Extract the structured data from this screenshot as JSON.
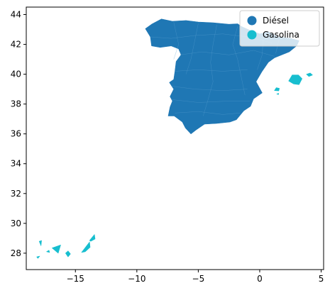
{
  "chart_data": {
    "type": "choropleth",
    "title": "",
    "xlabel": "",
    "ylabel": "",
    "xlim": [
      -19,
      5.2
    ],
    "ylim": [
      26.9,
      44.5
    ],
    "xticks": [
      -15,
      -10,
      -5,
      0,
      5
    ],
    "xtick_labels": [
      "−15",
      "−10",
      "−5",
      "0",
      "5"
    ],
    "yticks": [
      28,
      30,
      32,
      34,
      36,
      38,
      40,
      42,
      44
    ],
    "ytick_labels": [
      "28",
      "30",
      "32",
      "34",
      "36",
      "38",
      "40",
      "42",
      "44"
    ],
    "grid": false,
    "legend_position": "top-right",
    "series": [
      {
        "name": "Diésel",
        "color": "#1f77b4"
      },
      {
        "name": "Gasolina",
        "color": "#17becf"
      }
    ],
    "regions": [
      {
        "region": "Peninsula",
        "category": "Diésel",
        "outline": [
          [
            -9.3,
            43.05
          ],
          [
            -8.8,
            43.35
          ],
          [
            -8.0,
            43.7
          ],
          [
            -7.1,
            43.55
          ],
          [
            -6.0,
            43.6
          ],
          [
            -5.0,
            43.5
          ],
          [
            -3.8,
            43.45
          ],
          [
            -3.2,
            43.4
          ],
          [
            -2.5,
            43.35
          ],
          [
            -1.8,
            43.38
          ],
          [
            -1.5,
            43.2
          ],
          [
            -0.8,
            42.95
          ],
          [
            0.0,
            42.7
          ],
          [
            0.7,
            42.85
          ],
          [
            1.5,
            42.5
          ],
          [
            2.5,
            42.4
          ],
          [
            3.2,
            42.25
          ],
          [
            3.0,
            41.9
          ],
          [
            2.4,
            41.5
          ],
          [
            1.2,
            41.1
          ],
          [
            0.7,
            40.8
          ],
          [
            0.2,
            40.2
          ],
          [
            -0.3,
            39.5
          ],
          [
            0.2,
            38.75
          ],
          [
            -0.5,
            38.35
          ],
          [
            -0.75,
            37.85
          ],
          [
            -1.3,
            37.55
          ],
          [
            -1.9,
            36.95
          ],
          [
            -2.4,
            36.8
          ],
          [
            -3.5,
            36.7
          ],
          [
            -4.5,
            36.65
          ],
          [
            -5.2,
            36.25
          ],
          [
            -5.6,
            36.0
          ],
          [
            -6.05,
            36.4
          ],
          [
            -6.3,
            36.8
          ],
          [
            -6.95,
            37.2
          ],
          [
            -7.45,
            37.2
          ],
          [
            -7.3,
            37.8
          ],
          [
            -7.1,
            38.2
          ],
          [
            -7.3,
            38.5
          ],
          [
            -7.0,
            39.0
          ],
          [
            -7.35,
            39.45
          ],
          [
            -7.0,
            39.65
          ],
          [
            -6.9,
            40.2
          ],
          [
            -6.8,
            40.85
          ],
          [
            -6.4,
            41.3
          ],
          [
            -6.6,
            41.7
          ],
          [
            -7.2,
            41.9
          ],
          [
            -8.1,
            41.8
          ],
          [
            -8.8,
            41.9
          ],
          [
            -8.9,
            42.5
          ],
          [
            -9.3,
            43.05
          ]
        ]
      },
      {
        "region": "Mallorca",
        "category": "Gasolina",
        "outline": [
          [
            2.35,
            39.55
          ],
          [
            2.65,
            39.95
          ],
          [
            3.15,
            39.95
          ],
          [
            3.45,
            39.7
          ],
          [
            3.2,
            39.3
          ],
          [
            2.75,
            39.35
          ],
          [
            2.35,
            39.55
          ]
        ]
      },
      {
        "region": "Menorca",
        "category": "Gasolina",
        "outline": [
          [
            3.8,
            40.0
          ],
          [
            4.1,
            40.08
          ],
          [
            4.3,
            39.95
          ],
          [
            4.0,
            39.85
          ],
          [
            3.8,
            40.0
          ]
        ]
      },
      {
        "region": "Ibiza",
        "category": "Gasolina",
        "outline": [
          [
            1.2,
            38.9
          ],
          [
            1.35,
            39.1
          ],
          [
            1.6,
            39.05
          ],
          [
            1.55,
            38.88
          ],
          [
            1.2,
            38.9
          ]
        ]
      },
      {
        "region": "Formentera",
        "category": "Gasolina",
        "outline": [
          [
            1.38,
            38.68
          ],
          [
            1.55,
            38.72
          ],
          [
            1.52,
            38.63
          ],
          [
            1.38,
            38.68
          ]
        ]
      },
      {
        "region": "Lanzarote",
        "category": "Gasolina",
        "outline": [
          [
            -13.85,
            28.85
          ],
          [
            -13.45,
            29.25
          ],
          [
            -13.4,
            28.95
          ],
          [
            -13.75,
            28.8
          ],
          [
            -13.85,
            28.85
          ]
        ]
      },
      {
        "region": "Fuerteventura",
        "category": "Gasolina",
        "outline": [
          [
            -14.5,
            28.05
          ],
          [
            -13.85,
            28.75
          ],
          [
            -13.8,
            28.4
          ],
          [
            -14.2,
            28.1
          ],
          [
            -14.5,
            28.05
          ]
        ]
      },
      {
        "region": "Gran Canaria",
        "category": "Gasolina",
        "outline": [
          [
            -15.8,
            28.0
          ],
          [
            -15.6,
            28.15
          ],
          [
            -15.4,
            27.95
          ],
          [
            -15.6,
            27.75
          ],
          [
            -15.8,
            28.0
          ]
        ]
      },
      {
        "region": "Tenerife",
        "category": "Gasolina",
        "outline": [
          [
            -16.9,
            28.35
          ],
          [
            -16.2,
            28.55
          ],
          [
            -16.4,
            28.0
          ],
          [
            -16.9,
            28.35
          ]
        ]
      },
      {
        "region": "La Gomera",
        "category": "Gasolina",
        "outline": [
          [
            -17.35,
            28.1
          ],
          [
            -17.15,
            28.2
          ],
          [
            -17.1,
            28.05
          ],
          [
            -17.35,
            28.1
          ]
        ]
      },
      {
        "region": "La Palma",
        "category": "Gasolina",
        "outline": [
          [
            -17.95,
            28.8
          ],
          [
            -17.75,
            28.85
          ],
          [
            -17.8,
            28.5
          ],
          [
            -17.95,
            28.8
          ]
        ]
      },
      {
        "region": "El Hierro",
        "category": "Gasolina",
        "outline": [
          [
            -18.15,
            27.75
          ],
          [
            -17.9,
            27.8
          ],
          [
            -18.05,
            27.65
          ],
          [
            -18.15,
            27.75
          ]
        ]
      }
    ]
  }
}
